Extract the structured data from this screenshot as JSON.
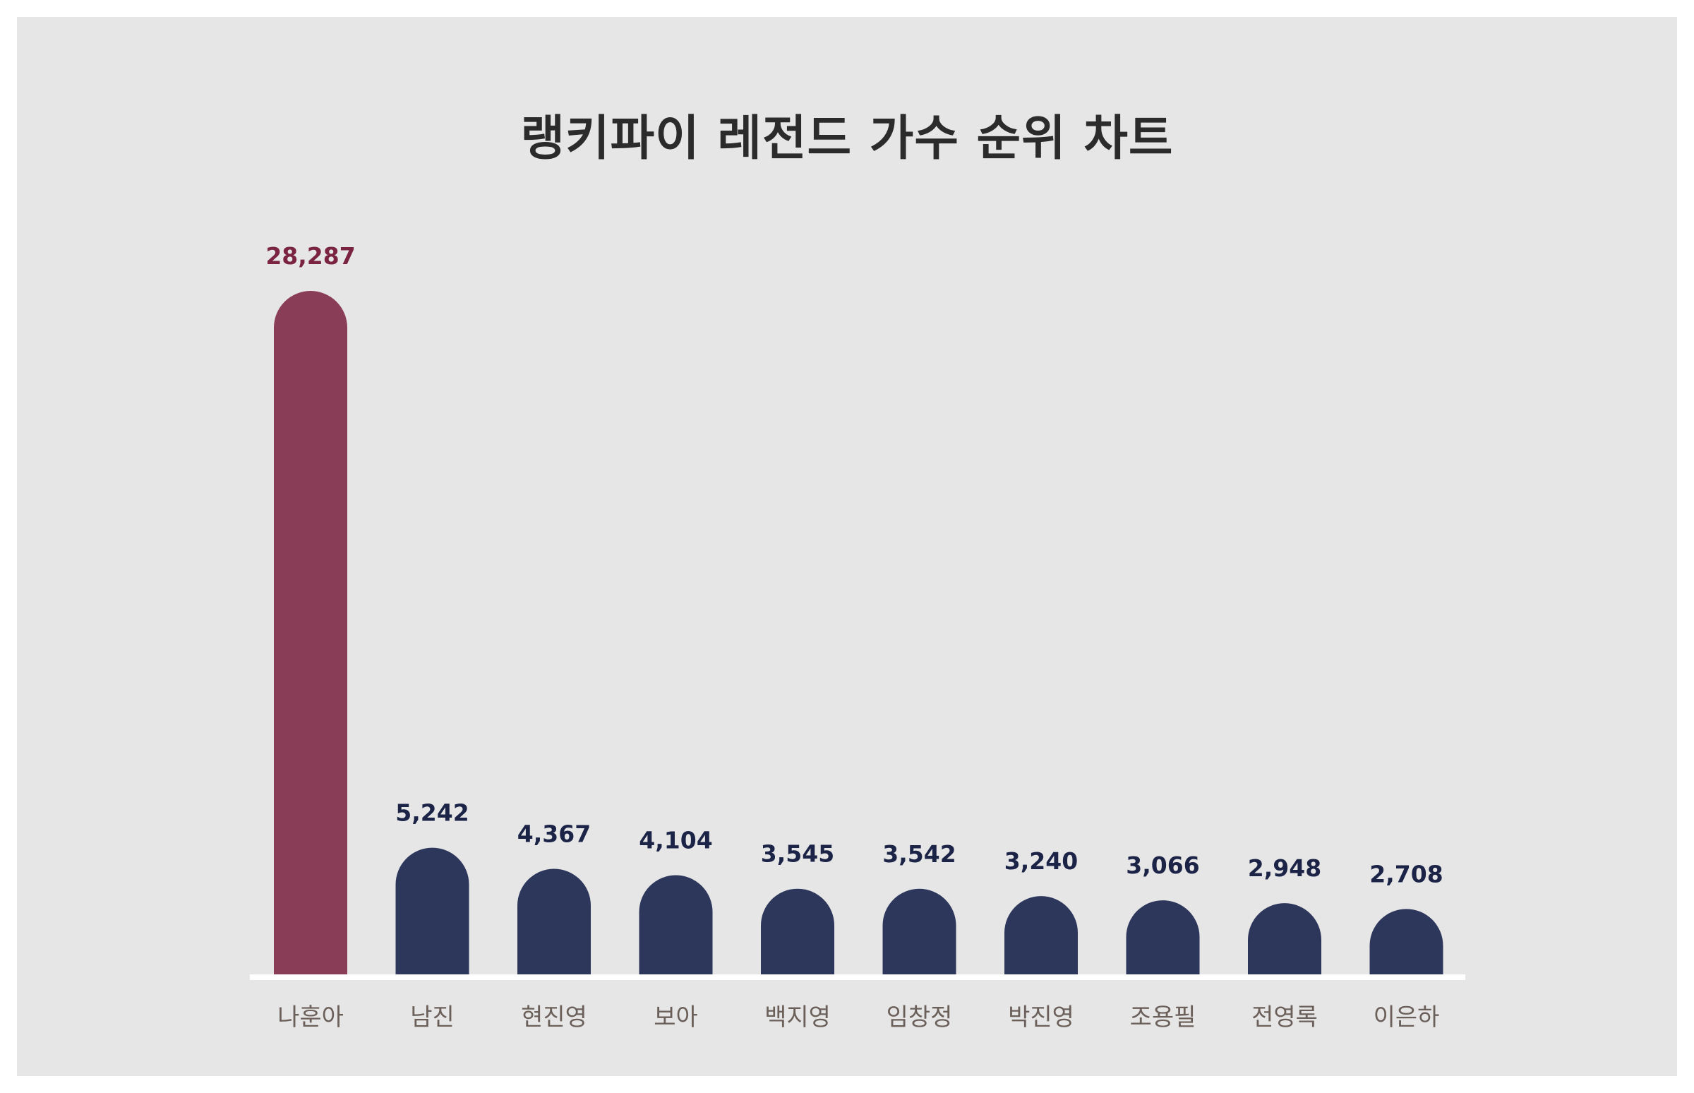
{
  "title": "랭키파이 레전드 가수 순위 차트",
  "colors": {
    "background": "#e6e6e6",
    "highlight_bar": "#8a3d57",
    "bar": "#2d375c",
    "highlight_label": "#7a2441",
    "value_label": "#1b2347",
    "category_label": "#6b5f5a",
    "baseline": "#ffffff",
    "title": "#2b2b2b"
  },
  "chart_data": {
    "type": "bar",
    "title": "랭키파이 레전드 가수 순위 차트",
    "xlabel": "",
    "ylabel": "",
    "categories": [
      "나훈아",
      "남진",
      "현진영",
      "보아",
      "백지영",
      "임창정",
      "박진영",
      "조용필",
      "전영록",
      "이은하"
    ],
    "values": [
      28287,
      5242,
      4367,
      4104,
      3545,
      3542,
      3240,
      3066,
      2948,
      2708
    ],
    "value_labels": [
      "28,287",
      "5,242",
      "4,367",
      "4,104",
      "3,545",
      "3,542",
      "3,240",
      "3,066",
      "2,948",
      "2,708"
    ],
    "highlight_index": 0,
    "grid": false,
    "legend": "none"
  }
}
